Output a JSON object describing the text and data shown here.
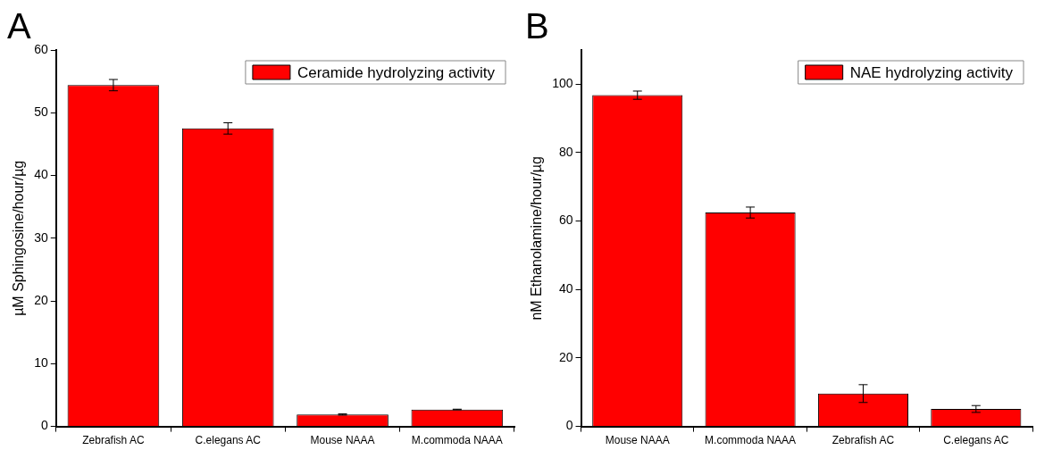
{
  "chart_data": [
    {
      "type": "bar",
      "title": "A",
      "ylabel": "µM Sphingosine/hour/µg",
      "categories": [
        "Zebrafish AC",
        "C.elegans AC",
        "Mouse NAAA",
        "M.commoda NAAA"
      ],
      "series": [
        {
          "name": "Ceramide hydrolyzing activity",
          "color": "#ff0000",
          "values": [
            54.4,
            47.5,
            1.9,
            2.7
          ],
          "errors": [
            0.9,
            0.9,
            0.1,
            0.05
          ]
        }
      ],
      "ylim": [
        0,
        60
      ],
      "yticks": [
        0,
        10,
        20,
        30,
        40,
        50,
        60
      ],
      "legend": "top right",
      "grid": false
    },
    {
      "type": "bar",
      "title": "B",
      "ylabel": "nM Ethanolamine/hour/µg",
      "categories": [
        "Mouse NAAA",
        "M.commoda NAAA",
        "Zebrafish AC",
        "C.elegans AC"
      ],
      "series": [
        {
          "name": "NAE hydrolyzing activity",
          "color": "#ff0000",
          "values": [
            96.8,
            62.5,
            9.6,
            5.1
          ],
          "errors": [
            1.2,
            1.6,
            2.6,
            1.0
          ]
        }
      ],
      "ylim": [
        0,
        110
      ],
      "yticks": [
        0,
        20,
        40,
        60,
        80,
        100
      ],
      "legend": "top right",
      "grid": false
    }
  ]
}
